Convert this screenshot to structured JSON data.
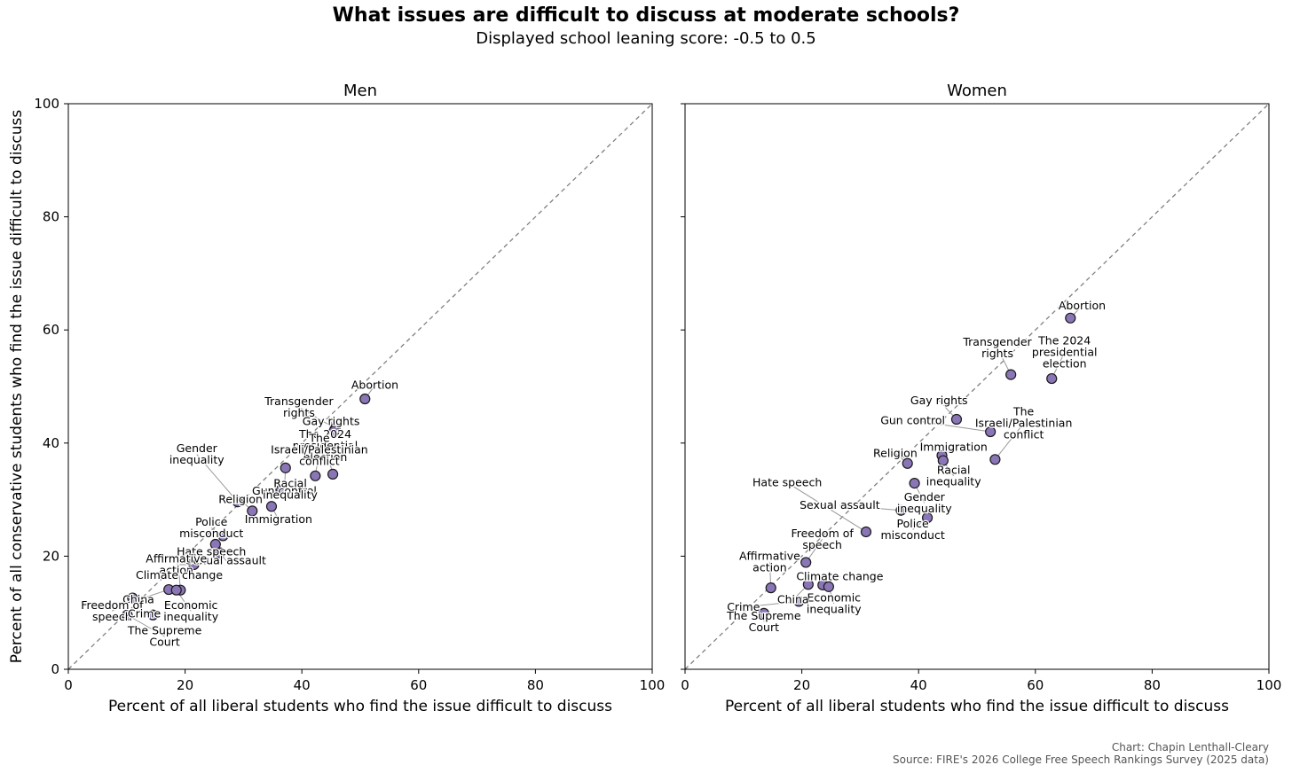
{
  "title": "What issues are difficult to discuss at moderate schools?",
  "subtitle": "Displayed school leaning score: -0.5 to 0.5",
  "credit": {
    "author": "Chart: Chapin Lenthall-Cleary",
    "source": "Source: FIRE's 2026 College Free Speech Rankings Survey (2025 data)"
  },
  "colors": {
    "marker": "#8a76b6",
    "marker_edge": "#1a1a1a",
    "diagonal": "#808080",
    "leader": "#999999"
  },
  "chart_data": [
    {
      "type": "scatter",
      "title": "Men",
      "xlabel": "Percent of all liberal students who find the issue difficult to discuss",
      "ylabel": "Percent of all conservative students who find the issue difficult to discuss",
      "xlim": [
        0,
        100
      ],
      "ylim": [
        0,
        100
      ],
      "xticks": [
        0,
        20,
        40,
        60,
        80,
        100
      ],
      "yticks": [
        0,
        20,
        40,
        60,
        80,
        100
      ],
      "reference_line": "y = x (dashed)",
      "points": [
        {
          "label": "Abortion",
          "x": 50.8,
          "y": 47.8,
          "lx": 52.5,
          "ly": 50.2
        },
        {
          "label": "Transgender rights",
          "x": 45.7,
          "y": 42.6,
          "lx": 39.5,
          "ly": 46.3
        },
        {
          "label": "Gay rights",
          "x": 45.5,
          "y": 42.1,
          "lx": 45.0,
          "ly": 43.8
        },
        {
          "label": "The 2024 presidential election",
          "x": 45.3,
          "y": 34.5,
          "lx": 44.0,
          "ly": 39.5
        },
        {
          "label": "The Israeli/Palestinian conflict",
          "x": 42.3,
          "y": 34.2,
          "lx": 43.0,
          "ly": 38.8
        },
        {
          "label": "Gender inequality",
          "x": 29.0,
          "y": 29.6,
          "lx": 22.0,
          "ly": 38.0
        },
        {
          "label": "Gun control",
          "x": 37.2,
          "y": 35.6,
          "lx": 37.0,
          "ly": 31.5
        },
        {
          "label": "Religion",
          "x": 31.5,
          "y": 28.0,
          "lx": 29.5,
          "ly": 30.0
        },
        {
          "label": "Racial inequality",
          "x": 36.4,
          "y": 31.7,
          "lx": 38.0,
          "ly": 31.8
        },
        {
          "label": "Immigration",
          "x": 34.8,
          "y": 28.8,
          "lx": 36.0,
          "ly": 26.5
        },
        {
          "label": "Police misconduct",
          "x": 26.5,
          "y": 23.6,
          "lx": 24.5,
          "ly": 25.0
        },
        {
          "label": "Hate speech",
          "x": 25.2,
          "y": 22.1,
          "lx": 24.5,
          "ly": 20.8
        },
        {
          "label": "Sexual assault",
          "x": 26.0,
          "y": 20.6,
          "lx": 27.0,
          "ly": 19.2
        },
        {
          "label": "Affirmative action",
          "x": 21.5,
          "y": 18.5,
          "lx": 18.5,
          "ly": 18.5
        },
        {
          "label": "Climate change",
          "x": 19.2,
          "y": 14.0,
          "lx": 19.0,
          "ly": 16.6
        },
        {
          "label": "China",
          "x": 17.2,
          "y": 14.1,
          "lx": 12.0,
          "ly": 12.3
        },
        {
          "label": "Economic inequality",
          "x": 18.5,
          "y": 14.0,
          "lx": 21.0,
          "ly": 10.3
        },
        {
          "label": "Freedom of speech",
          "x": 11.0,
          "y": 12.6,
          "lx": 7.5,
          "ly": 10.3
        },
        {
          "label": "Crime",
          "x": 14.5,
          "y": 9.6,
          "lx": 13.0,
          "ly": 9.8
        },
        {
          "label": "The Supreme Court",
          "x": 10.1,
          "y": 9.6,
          "lx": 16.5,
          "ly": 5.8
        }
      ]
    },
    {
      "type": "scatter",
      "title": "Women",
      "xlabel": "Percent of all liberal students who find the issue difficult to discuss",
      "xlim": [
        0,
        100
      ],
      "ylim": [
        0,
        100
      ],
      "xticks": [
        0,
        20,
        40,
        60,
        80,
        100
      ],
      "reference_line": "y = x (dashed)",
      "points": [
        {
          "label": "Abortion",
          "x": 66.0,
          "y": 62.1,
          "lx": 68.0,
          "ly": 64.3
        },
        {
          "label": "Transgender rights",
          "x": 55.8,
          "y": 52.1,
          "lx": 53.5,
          "ly": 56.8
        },
        {
          "label": "The 2024 presidential election",
          "x": 62.8,
          "y": 51.4,
          "lx": 65.0,
          "ly": 56.0
        },
        {
          "label": "Gay rights",
          "x": 46.5,
          "y": 44.2,
          "lx": 43.5,
          "ly": 47.5
        },
        {
          "label": "Gun control",
          "x": 52.3,
          "y": 42.0,
          "lx": 39.0,
          "ly": 44.0
        },
        {
          "label": "The Israeli/Palestinian conflict",
          "x": 53.1,
          "y": 37.1,
          "lx": 58.0,
          "ly": 43.5
        },
        {
          "label": "Religion",
          "x": 38.1,
          "y": 36.4,
          "lx": 36.0,
          "ly": 38.2
        },
        {
          "label": "Immigration",
          "x": 44.0,
          "y": 37.8,
          "lx": 46.0,
          "ly": 39.3
        },
        {
          "label": "Racial inequality",
          "x": 44.2,
          "y": 36.9,
          "lx": 46.0,
          "ly": 34.2
        },
        {
          "label": "Gender inequality",
          "x": 39.3,
          "y": 32.9,
          "lx": 41.0,
          "ly": 29.4
        },
        {
          "label": "Hate speech",
          "x": 31.0,
          "y": 24.3,
          "lx": 17.5,
          "ly": 33.0
        },
        {
          "label": "Sexual assault",
          "x": 37.0,
          "y": 28.1,
          "lx": 26.5,
          "ly": 29.0
        },
        {
          "label": "Police misconduct",
          "x": 41.5,
          "y": 26.8,
          "lx": 39.0,
          "ly": 24.7
        },
        {
          "label": "Freedom of speech",
          "x": 20.7,
          "y": 18.9,
          "lx": 23.5,
          "ly": 23.0
        },
        {
          "label": "Affirmative action",
          "x": 14.7,
          "y": 14.4,
          "lx": 14.5,
          "ly": 19.0
        },
        {
          "label": "Climate change",
          "x": 23.6,
          "y": 14.9,
          "lx": 26.5,
          "ly": 16.4
        },
        {
          "label": "Economic inequality",
          "x": 24.6,
          "y": 14.6,
          "lx": 25.5,
          "ly": 11.6
        },
        {
          "label": "China",
          "x": 21.1,
          "y": 15.0,
          "lx": 18.5,
          "ly": 12.3
        },
        {
          "label": "Crime",
          "x": 19.5,
          "y": 12.0,
          "lx": 10.0,
          "ly": 11.0
        },
        {
          "label": "The Supreme Court",
          "x": 13.5,
          "y": 9.9,
          "lx": 13.5,
          "ly": 8.4
        }
      ]
    }
  ]
}
